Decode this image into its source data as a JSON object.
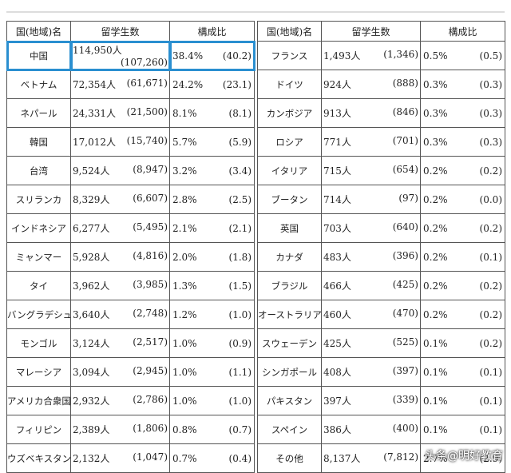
{
  "headers": {
    "country": "国(地域)名",
    "students": "留学生数",
    "ratio": "構成比"
  },
  "left_rows": [
    {
      "country": "中国",
      "students": "114,950人",
      "students_prev": "(107,260)",
      "ratio": "38.4%",
      "ratio_prev": "(40.2)",
      "highlight": true
    },
    {
      "country": "ベトナム",
      "students": "72,354人",
      "students_prev": "(61,671)",
      "ratio": "24.2%",
      "ratio_prev": "(23.1)"
    },
    {
      "country": "ネパール",
      "students": "24,331人",
      "students_prev": "(21,500)",
      "ratio": "8.1%",
      "ratio_prev": "(8.1)"
    },
    {
      "country": "韓国",
      "students": "17,012人",
      "students_prev": "(15,740)",
      "ratio": "5.7%",
      "ratio_prev": "(5.9)"
    },
    {
      "country": "台湾",
      "students": "9,524人",
      "students_prev": "(8,947)",
      "ratio": "3.2%",
      "ratio_prev": "(3.4)"
    },
    {
      "country": "スリランカ",
      "students": "8,329人",
      "students_prev": "(6,607)",
      "ratio": "2.8%",
      "ratio_prev": "(2.5)"
    },
    {
      "country": "インドネシア",
      "students": "6,277人",
      "students_prev": "(5,495)",
      "ratio": "2.1%",
      "ratio_prev": "(2.1)"
    },
    {
      "country": "ミャンマー",
      "students": "5,928人",
      "students_prev": "(4,816)",
      "ratio": "2.0%",
      "ratio_prev": "(1.8)"
    },
    {
      "country": "タイ",
      "students": "3,962人",
      "students_prev": "(3,985)",
      "ratio": "1.3%",
      "ratio_prev": "(1.5)"
    },
    {
      "country": "バングラデシュ",
      "students": "3,640人",
      "students_prev": "(2,748)",
      "ratio": "1.2%",
      "ratio_prev": "(1.0)"
    },
    {
      "country": "モンゴル",
      "students": "3,124人",
      "students_prev": "(2,517)",
      "ratio": "1.0%",
      "ratio_prev": "(0.9)"
    },
    {
      "country": "マレーシア",
      "students": "3,094人",
      "students_prev": "(2,945)",
      "ratio": "1.0%",
      "ratio_prev": "(1.1)"
    },
    {
      "country": "アメリカ合衆国",
      "students": "2,932人",
      "students_prev": "(2,786)",
      "ratio": "1.0%",
      "ratio_prev": "(1.0)"
    },
    {
      "country": "フィリピン",
      "students": "2,389人",
      "students_prev": "(1,806)",
      "ratio": "0.8%",
      "ratio_prev": "(0.7)"
    },
    {
      "country": "ウズベキスタン",
      "students": "2,132人",
      "students_prev": "(1,047)",
      "ratio": "0.7%",
      "ratio_prev": "(0.4)"
    }
  ],
  "right_rows": [
    {
      "country": "フランス",
      "students": "1,493人",
      "students_prev": "(1,346)",
      "ratio": "0.5%",
      "ratio_prev": "(0.5)"
    },
    {
      "country": "ドイツ",
      "students": "924人",
      "students_prev": "(888)",
      "ratio": "0.3%",
      "ratio_prev": "(0.3)"
    },
    {
      "country": "カンボジア",
      "students": "913人",
      "students_prev": "(846)",
      "ratio": "0.3%",
      "ratio_prev": "(0.3)"
    },
    {
      "country": "ロシア",
      "students": "771人",
      "students_prev": "(701)",
      "ratio": "0.3%",
      "ratio_prev": "(0.3)"
    },
    {
      "country": "イタリア",
      "students": "715人",
      "students_prev": "(654)",
      "ratio": "0.2%",
      "ratio_prev": "(0.2)"
    },
    {
      "country": "ブータン",
      "students": "714人",
      "students_prev": "(97)",
      "ratio": "0.2%",
      "ratio_prev": "(0.0)"
    },
    {
      "country": "英国",
      "students": "703人",
      "students_prev": "(640)",
      "ratio": "0.2%",
      "ratio_prev": "(0.2)"
    },
    {
      "country": "カナダ",
      "students": "483人",
      "students_prev": "(396)",
      "ratio": "0.2%",
      "ratio_prev": "(0.1)"
    },
    {
      "country": "ブラジル",
      "students": "466人",
      "students_prev": "(425)",
      "ratio": "0.2%",
      "ratio_prev": "(0.2)"
    },
    {
      "country": "オーストラリア",
      "students": "460人",
      "students_prev": "(470)",
      "ratio": "0.2%",
      "ratio_prev": "(0.2)"
    },
    {
      "country": "スウェーデン",
      "students": "425人",
      "students_prev": "(525)",
      "ratio": "0.1%",
      "ratio_prev": "(0.2)"
    },
    {
      "country": "シンガポール",
      "students": "408人",
      "students_prev": "(397)",
      "ratio": "0.1%",
      "ratio_prev": "(0.1)"
    },
    {
      "country": "パキスタン",
      "students": "397人",
      "students_prev": "(339)",
      "ratio": "0.1%",
      "ratio_prev": "(0.1)"
    },
    {
      "country": "スペイン",
      "students": "386人",
      "students_prev": "(400)",
      "ratio": "0.1%",
      "ratio_prev": "(0.1)"
    },
    {
      "country": "その他",
      "students": "8,137人",
      "students_prev": "(7,812)",
      "ratio": "2.7%",
      "ratio_prev": "(2.9)"
    }
  ],
  "watermark": "头条@明好教育"
}
